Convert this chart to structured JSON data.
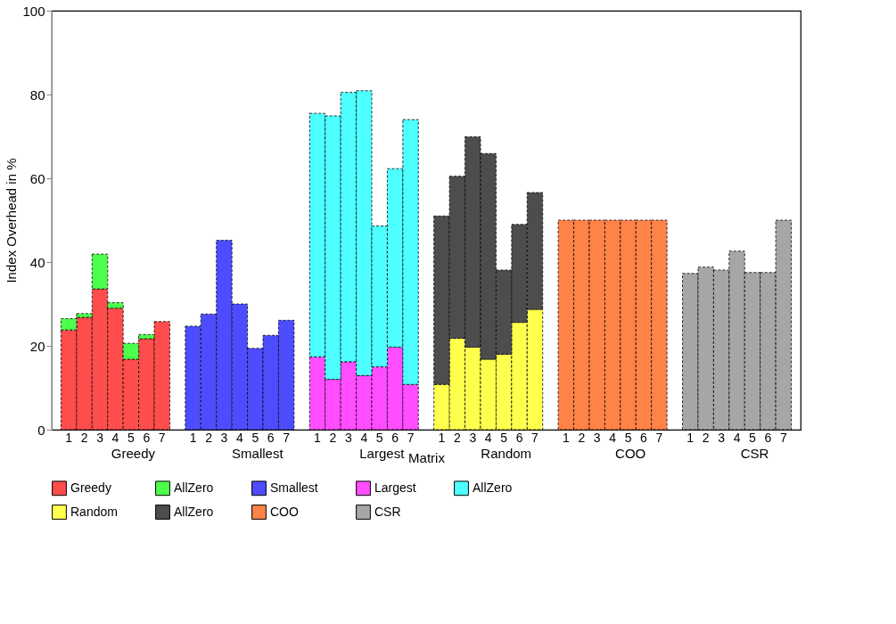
{
  "chart_data": {
    "type": "bar",
    "stacked": true,
    "xlabel": "Matrix",
    "ylabel": "Index Overhead in %",
    "categories": [
      "1",
      "2",
      "3",
      "4",
      "5",
      "6",
      "7",
      null,
      "1",
      "2",
      "3",
      "4",
      "5",
      "6",
      "7",
      null,
      "1",
      "2",
      "3",
      "4",
      "5",
      "6",
      "7",
      null,
      "1",
      "2",
      "3",
      "4",
      "5",
      "6",
      "7",
      null,
      "1",
      "2",
      "3",
      "4",
      "5",
      "6",
      "7",
      null,
      "1",
      "2",
      "3",
      "4",
      "5",
      "6",
      "7"
    ],
    "annotations": [
      "Greedy",
      "Smallest",
      "Largest",
      "Random",
      "COO",
      "CSR"
    ],
    "ylim": [
      0,
      100
    ],
    "yticks": [
      0,
      20,
      40,
      60,
      80,
      100
    ],
    "grid": false,
    "legend": "bottom",
    "series": [
      {
        "name": "Greedy",
        "color": "#ff4d4d",
        "values": [
          23.8,
          26.8,
          33.6,
          29.0,
          16.8,
          21.7,
          25.8,
          null,
          null,
          null,
          null,
          null,
          null,
          null,
          null,
          null,
          null,
          null,
          null,
          null,
          null,
          null,
          null,
          null,
          null,
          null,
          null,
          null,
          null,
          null,
          null,
          null,
          null,
          null,
          null,
          null,
          null,
          null,
          null,
          null,
          null,
          null,
          null,
          null,
          null,
          null,
          null
        ]
      },
      {
        "name": "AllZero",
        "color": "#4dff4d",
        "values": [
          2.7,
          0.9,
          8.3,
          1.3,
          3.8,
          1.0,
          null,
          null,
          null,
          null,
          null,
          null,
          null,
          null,
          null,
          null,
          null,
          null,
          null,
          null,
          null,
          null,
          null,
          null,
          null,
          null,
          null,
          null,
          null,
          null,
          null,
          null,
          null,
          null,
          null,
          null,
          null,
          null,
          null,
          null,
          null,
          null,
          null,
          null,
          null,
          null,
          null
        ]
      },
      {
        "name": "Smallest",
        "color": "#4d4dff",
        "values": [
          null,
          null,
          null,
          null,
          null,
          null,
          null,
          null,
          24.7,
          27.6,
          45.2,
          30.0,
          19.4,
          22.5,
          26.1,
          null,
          null,
          null,
          null,
          null,
          null,
          null,
          null,
          null,
          null,
          null,
          null,
          null,
          null,
          null,
          null,
          null,
          null,
          null,
          null,
          null,
          null,
          null,
          null,
          null,
          null,
          null,
          null,
          null,
          null,
          null,
          null
        ]
      },
      {
        "name": "Largest",
        "color": "#ff4dff",
        "values": [
          null,
          null,
          null,
          null,
          null,
          null,
          null,
          null,
          null,
          null,
          null,
          null,
          null,
          null,
          null,
          null,
          17.4,
          12.0,
          16.2,
          12.9,
          15.0,
          19.7,
          10.8,
          null,
          null,
          null,
          null,
          null,
          null,
          null,
          null,
          null,
          null,
          null,
          null,
          null,
          null,
          null,
          null,
          null,
          null,
          null,
          null,
          null,
          null,
          null,
          null
        ]
      },
      {
        "name": "AllZero",
        "color": "#4dffff",
        "values": [
          null,
          null,
          null,
          null,
          null,
          null,
          null,
          null,
          null,
          null,
          null,
          null,
          null,
          null,
          null,
          null,
          58.1,
          62.9,
          64.3,
          68.0,
          33.6,
          42.6,
          63.2,
          null,
          null,
          null,
          null,
          null,
          null,
          null,
          null,
          null,
          null,
          null,
          null,
          null,
          null,
          null,
          null,
          null,
          null,
          null,
          null,
          null,
          null,
          null,
          null
        ]
      },
      {
        "name": "Random",
        "color": "#ffff4d",
        "values": [
          null,
          null,
          null,
          null,
          null,
          null,
          null,
          null,
          null,
          null,
          null,
          null,
          null,
          null,
          null,
          null,
          null,
          null,
          null,
          null,
          null,
          null,
          null,
          null,
          10.8,
          21.8,
          19.7,
          16.8,
          18.0,
          25.6,
          28.7,
          null,
          null,
          null,
          null,
          null,
          null,
          null,
          null,
          null,
          null,
          null,
          null,
          null,
          null,
          null,
          null
        ]
      },
      {
        "name": "AllZero",
        "color": "#4d4d4d",
        "values": [
          null,
          null,
          null,
          null,
          null,
          null,
          null,
          null,
          null,
          null,
          null,
          null,
          null,
          null,
          null,
          null,
          null,
          null,
          null,
          null,
          null,
          null,
          null,
          null,
          40.2,
          38.7,
          50.2,
          49.1,
          20.1,
          23.4,
          27.9,
          null,
          null,
          null,
          null,
          null,
          null,
          null,
          null,
          null,
          null,
          null,
          null,
          null,
          null,
          null,
          null
        ]
      },
      {
        "name": "COO",
        "color": "#ff8247",
        "values": [
          null,
          null,
          null,
          null,
          null,
          null,
          null,
          null,
          null,
          null,
          null,
          null,
          null,
          null,
          null,
          null,
          null,
          null,
          null,
          null,
          null,
          null,
          null,
          null,
          null,
          null,
          null,
          null,
          null,
          null,
          null,
          null,
          50,
          50,
          50,
          50,
          50,
          50,
          50,
          null,
          null,
          null,
          null,
          null,
          null,
          null,
          null
        ]
      },
      {
        "name": "CSR",
        "color": "#a6a6a6",
        "values": [
          null,
          null,
          null,
          null,
          null,
          null,
          null,
          null,
          null,
          null,
          null,
          null,
          null,
          null,
          null,
          null,
          null,
          null,
          null,
          null,
          null,
          null,
          null,
          null,
          null,
          null,
          null,
          null,
          null,
          null,
          null,
          null,
          null,
          null,
          null,
          null,
          null,
          null,
          null,
          null,
          37.3,
          38.8,
          38.1,
          42.6,
          37.5,
          37.5,
          50.0
        ]
      }
    ]
  }
}
